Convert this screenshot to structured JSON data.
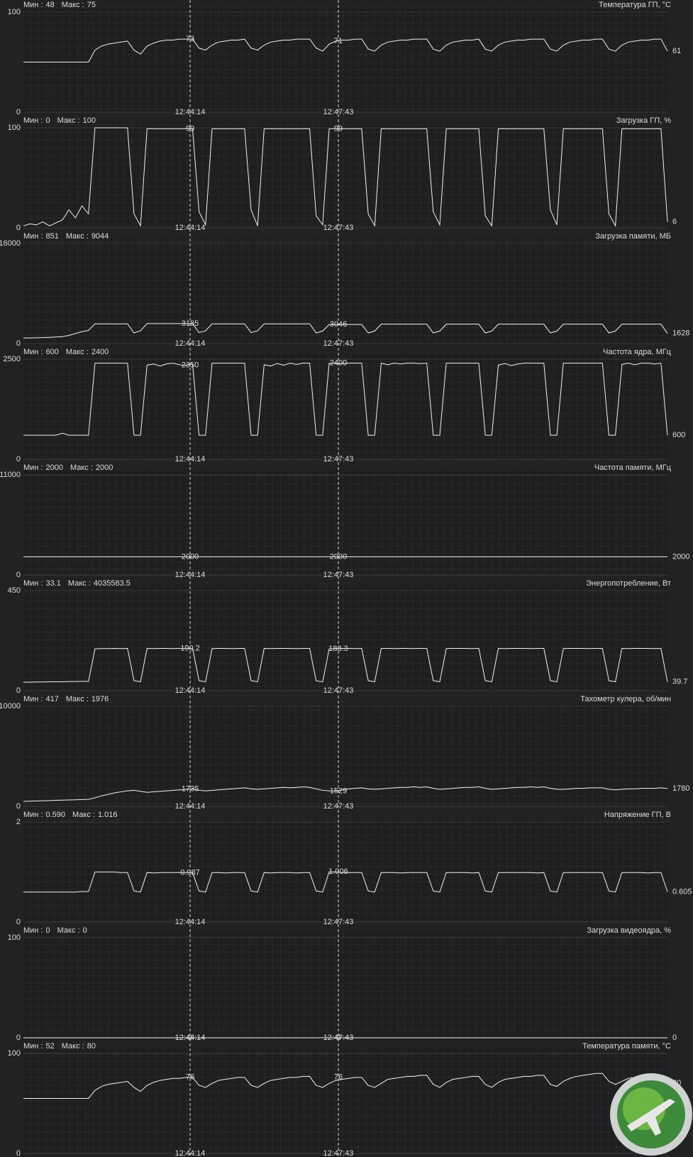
{
  "min_label": "Мин :",
  "max_label": "Макс :",
  "cursor_times": [
    "12:44:14",
    "12:47:43"
  ],
  "chart_data": [
    {
      "type": "line",
      "title": "Температура ГП, °C",
      "min": 48,
      "max": 75,
      "ylim": [
        0,
        100
      ],
      "yticks": [
        0,
        100
      ],
      "cursor_values": [
        73,
        71
      ],
      "last_value": 61,
      "values": [
        50,
        50,
        50,
        50,
        50,
        50,
        50,
        50,
        50,
        50,
        50,
        62,
        66,
        68,
        69,
        70,
        71,
        62,
        58,
        66,
        69,
        71,
        72,
        72,
        73,
        73,
        73,
        64,
        62,
        67,
        70,
        71,
        72,
        72,
        73,
        64,
        62,
        67,
        70,
        71,
        72,
        72,
        73,
        73,
        73,
        64,
        61,
        68,
        71,
        72,
        72,
        73,
        73,
        63,
        61,
        67,
        70,
        71,
        72,
        72,
        73,
        73,
        73,
        63,
        61,
        67,
        70,
        71,
        72,
        72,
        73,
        63,
        61,
        67,
        70,
        71,
        72,
        72,
        73,
        73,
        73,
        63,
        61,
        67,
        70,
        71,
        72,
        72,
        73,
        73,
        63,
        61,
        67,
        70,
        71,
        72,
        72,
        73,
        73,
        61
      ]
    },
    {
      "type": "line",
      "title": "Загрузка ГП, %",
      "min": 0,
      "max": 100,
      "ylim": [
        0,
        100
      ],
      "yticks": [
        0,
        100
      ],
      "cursor_values": [
        99,
        99
      ],
      "last_value": 6,
      "values": [
        2,
        4,
        3,
        6,
        2,
        5,
        8,
        18,
        10,
        22,
        14,
        100,
        100,
        100,
        100,
        100,
        100,
        14,
        2,
        99,
        99,
        99,
        99,
        99,
        99,
        99,
        99,
        16,
        3,
        99,
        99,
        99,
        99,
        99,
        99,
        18,
        2,
        99,
        99,
        99,
        99,
        99,
        99,
        99,
        99,
        12,
        3,
        99,
        99,
        99,
        99,
        99,
        99,
        14,
        2,
        99,
        99,
        99,
        99,
        99,
        99,
        99,
        99,
        16,
        3,
        99,
        99,
        99,
        99,
        99,
        99,
        12,
        2,
        99,
        99,
        99,
        99,
        99,
        99,
        99,
        99,
        18,
        3,
        99,
        99,
        99,
        99,
        99,
        99,
        99,
        14,
        2,
        99,
        99,
        99,
        99,
        99,
        99,
        99,
        6
      ]
    },
    {
      "type": "line",
      "title": "Загрузка памяти, МБ",
      "min": 851,
      "max": 9044,
      "ylim": [
        0,
        16000
      ],
      "yticks": [
        0,
        16000
      ],
      "cursor_values": [
        3185,
        3046
      ],
      "last_value": 1628,
      "values": [
        900,
        900,
        920,
        950,
        1000,
        1050,
        1100,
        1300,
        1600,
        1900,
        2100,
        3150,
        3150,
        3150,
        3150,
        3150,
        3150,
        1700,
        2050,
        3185,
        3185,
        3185,
        3185,
        3185,
        3185,
        3185,
        3185,
        1750,
        2050,
        3150,
        3150,
        3150,
        3150,
        3150,
        3150,
        1750,
        2050,
        3150,
        3150,
        3150,
        3150,
        3150,
        3150,
        3150,
        3150,
        1700,
        2000,
        3046,
        3046,
        3046,
        3046,
        3046,
        3046,
        1700,
        2000,
        3100,
        3100,
        3100,
        3100,
        3100,
        3100,
        3100,
        3100,
        1700,
        2000,
        3100,
        3100,
        3100,
        3100,
        3100,
        3100,
        1700,
        2000,
        3100,
        3100,
        3100,
        3100,
        3100,
        3100,
        3100,
        3100,
        1700,
        2000,
        3100,
        3100,
        3100,
        3100,
        3100,
        3100,
        3100,
        1700,
        2000,
        3100,
        3100,
        3100,
        3100,
        3100,
        3100,
        3100,
        1628
      ]
    },
    {
      "type": "line",
      "title": "Частота ядра, МГц",
      "min": 600,
      "max": 2400,
      "ylim": [
        0,
        2500
      ],
      "yticks": [
        0,
        2500
      ],
      "cursor_values": [
        2350,
        2400
      ],
      "last_value": 600,
      "values": [
        600,
        600,
        600,
        600,
        600,
        600,
        650,
        600,
        600,
        600,
        600,
        2400,
        2400,
        2400,
        2400,
        2400,
        2400,
        600,
        600,
        2350,
        2380,
        2330,
        2380,
        2400,
        2360,
        2350,
        2380,
        600,
        600,
        2400,
        2400,
        2400,
        2400,
        2400,
        2400,
        600,
        600,
        2360,
        2330,
        2390,
        2350,
        2400,
        2370,
        2400,
        2400,
        600,
        600,
        2400,
        2400,
        2390,
        2400,
        2400,
        2400,
        600,
        600,
        2400,
        2360,
        2400,
        2380,
        2400,
        2400,
        2390,
        2400,
        600,
        600,
        2400,
        2400,
        2400,
        2400,
        2400,
        2400,
        600,
        600,
        2350,
        2390,
        2340,
        2380,
        2400,
        2400,
        2400,
        2400,
        600,
        600,
        2400,
        2400,
        2400,
        2400,
        2400,
        2400,
        2400,
        600,
        600,
        2370,
        2400,
        2360,
        2400,
        2400,
        2380,
        2400,
        600
      ]
    },
    {
      "type": "line",
      "title": "Частота памяти, МГц",
      "min": 2000,
      "max": 2000,
      "ylim": [
        0,
        11000
      ],
      "yticks": [
        0,
        11000
      ],
      "cursor_values": [
        2000,
        2000
      ],
      "last_value": 2000,
      "values": [
        2000,
        2000
      ]
    },
    {
      "type": "line",
      "title": "Энергопотребление, Вт",
      "min": 33.1,
      "max": 4035583.5,
      "ylim": [
        0,
        450
      ],
      "yticks": [
        0,
        450
      ],
      "cursor_values": [
        190.2,
        188.3
      ],
      "last_value": 39.7,
      "values": [
        38,
        38,
        39,
        39,
        40,
        40,
        40,
        41,
        41,
        42,
        42,
        188,
        189,
        189,
        190,
        189,
        190,
        45,
        40,
        190,
        189,
        190,
        190,
        189,
        190,
        190,
        190,
        45,
        40,
        189,
        190,
        190,
        189,
        190,
        190,
        45,
        40,
        190,
        189,
        190,
        190,
        190,
        189,
        190,
        190,
        44,
        40,
        188,
        189,
        190,
        190,
        189,
        190,
        45,
        40,
        190,
        190,
        189,
        190,
        190,
        189,
        190,
        190,
        45,
        40,
        189,
        190,
        190,
        190,
        189,
        190,
        45,
        40,
        190,
        189,
        190,
        190,
        190,
        189,
        190,
        190,
        45,
        40,
        189,
        190,
        190,
        190,
        189,
        190,
        190,
        45,
        40,
        190,
        189,
        190,
        190,
        190,
        189,
        190,
        39.7
      ]
    },
    {
      "type": "line",
      "title": "Тахометр кулера, об/мин",
      "min": 417,
      "max": 1976,
      "ylim": [
        0,
        10000
      ],
      "yticks": [
        0,
        10000
      ],
      "cursor_values": [
        1735,
        1529
      ],
      "last_value": 1780,
      "values": [
        500,
        520,
        540,
        560,
        580,
        600,
        620,
        640,
        660,
        680,
        700,
        850,
        1050,
        1200,
        1350,
        1450,
        1550,
        1600,
        1500,
        1400,
        1450,
        1500,
        1550,
        1600,
        1650,
        1700,
        1735,
        1600,
        1550,
        1600,
        1650,
        1700,
        1750,
        1800,
        1850,
        1750,
        1700,
        1750,
        1800,
        1850,
        1900,
        1850,
        1900,
        1950,
        1900,
        1750,
        1600,
        1550,
        1529,
        1650,
        1750,
        1800,
        1850,
        1750,
        1700,
        1750,
        1800,
        1850,
        1900,
        1900,
        1950,
        1900,
        1950,
        1800,
        1700,
        1750,
        1800,
        1850,
        1900,
        1900,
        1950,
        1800,
        1700,
        1750,
        1800,
        1850,
        1900,
        1900,
        1950,
        1900,
        1950,
        1800,
        1700,
        1700,
        1750,
        1800,
        1800,
        1850,
        1850,
        1850,
        1700,
        1650,
        1700,
        1750,
        1750,
        1800,
        1800,
        1800,
        1850,
        1780
      ]
    },
    {
      "type": "line",
      "title": "Напряжение ГП, В",
      "min": {
        "value": 0.59,
        "label": "0.590"
      },
      "max": 1.016,
      "ylim": [
        0,
        2
      ],
      "yticks": [
        0,
        2
      ],
      "cursor_values": [
        0.987,
        1.006
      ],
      "last_value": 0.605,
      "values": [
        0.6,
        0.6,
        0.6,
        0.6,
        0.6,
        0.6,
        0.6,
        0.6,
        0.6,
        0.61,
        0.61,
        1,
        1,
        1,
        1,
        0.99,
        0.99,
        0.62,
        0.6,
        0.99,
        0.98,
        0.99,
        0.99,
        0.99,
        0.99,
        0.99,
        0.987,
        0.62,
        0.6,
        0.99,
        0.99,
        0.98,
        0.99,
        0.99,
        0.99,
        0.62,
        0.6,
        0.99,
        0.98,
        0.99,
        0.99,
        0.99,
        0.98,
        0.99,
        0.99,
        0.62,
        0.6,
        1.006,
        1,
        0.99,
        0.99,
        0.99,
        0.99,
        0.62,
        0.6,
        0.99,
        0.99,
        0.99,
        0.98,
        0.99,
        0.99,
        0.99,
        0.99,
        0.62,
        0.6,
        0.99,
        0.99,
        0.99,
        0.99,
        0.98,
        0.99,
        0.62,
        0.6,
        0.99,
        0.99,
        0.99,
        0.99,
        0.99,
        0.99,
        0.98,
        0.99,
        0.62,
        0.6,
        0.99,
        0.99,
        0.99,
        0.99,
        0.99,
        0.99,
        0.99,
        0.62,
        0.6,
        0.99,
        0.99,
        0.99,
        0.99,
        0.98,
        0.99,
        0.99,
        0.605
      ]
    },
    {
      "type": "line",
      "title": "Загрузка видеоядра, %",
      "min": 0,
      "max": 0,
      "ylim": [
        0,
        100
      ],
      "yticks": [
        0,
        100
      ],
      "cursor_values": [
        0,
        0
      ],
      "last_value": 0,
      "values": [
        0,
        0
      ]
    },
    {
      "type": "line",
      "title": "Температура памяти, °C",
      "min": 52,
      "max": 80,
      "ylim": [
        0,
        100
      ],
      "yticks": [
        0,
        100
      ],
      "cursor_values": [
        76,
        76
      ],
      "last_value": 70,
      "values": [
        55,
        55,
        55,
        55,
        55,
        55,
        55,
        55,
        55,
        55,
        55,
        63,
        67,
        69,
        70,
        71,
        72,
        66,
        62,
        68,
        71,
        73,
        74,
        75,
        75,
        76,
        76,
        68,
        66,
        70,
        73,
        74,
        75,
        76,
        76,
        68,
        66,
        70,
        73,
        74,
        75,
        76,
        76,
        77,
        77,
        68,
        66,
        70,
        73,
        74,
        75,
        76,
        76,
        68,
        66,
        70,
        74,
        75,
        76,
        77,
        77,
        78,
        78,
        69,
        66,
        71,
        74,
        75,
        76,
        77,
        77,
        69,
        66,
        71,
        74,
        75,
        76,
        77,
        77,
        78,
        78,
        69,
        67,
        72,
        75,
        77,
        78,
        79,
        80,
        80,
        72,
        69,
        72,
        75,
        76,
        77,
        77,
        78,
        78,
        70
      ]
    }
  ]
}
